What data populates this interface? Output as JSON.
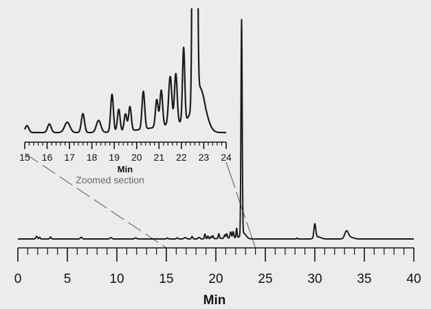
{
  "chart_data": [
    {
      "type": "line",
      "title": "",
      "xlabel": "Min",
      "ylabel": "",
      "xlim": [
        0,
        40
      ],
      "ylim": [
        0,
        100
      ],
      "xticks": [
        0,
        5,
        10,
        15,
        20,
        25,
        30,
        35,
        40
      ],
      "xtick_labels": [
        "0",
        "5",
        "10",
        "15",
        "20",
        "25",
        "30",
        "35",
        "40"
      ],
      "minor_tick_step": 1,
      "grid": false,
      "peaks": [
        [
          1.9,
          1.2,
          0.08
        ],
        [
          2.2,
          0.8,
          0.06
        ],
        [
          3.3,
          0.9,
          0.07
        ],
        [
          6.4,
          0.8,
          0.09
        ],
        [
          9.4,
          0.6,
          0.1
        ],
        [
          11.9,
          0.5,
          0.1
        ],
        [
          15.1,
          0.4,
          0.08
        ],
        [
          16.1,
          0.5,
          0.08
        ],
        [
          16.9,
          0.6,
          0.12
        ],
        [
          17.6,
          1.1,
          0.07
        ],
        [
          18.3,
          0.7,
          0.1
        ],
        [
          18.9,
          2.2,
          0.06
        ],
        [
          19.2,
          1.3,
          0.06
        ],
        [
          19.5,
          1.0,
          0.06
        ],
        [
          19.7,
          1.4,
          0.06
        ],
        [
          20.3,
          2.2,
          0.06
        ],
        [
          20.9,
          1.6,
          0.06
        ],
        [
          21.1,
          2.1,
          0.06
        ],
        [
          21.5,
          2.8,
          0.07
        ],
        [
          21.75,
          2.9,
          0.06
        ],
        [
          22.1,
          4.3,
          0.05
        ],
        [
          22.6,
          100,
          0.06
        ],
        [
          22.85,
          2.2,
          0.25
        ],
        [
          28.2,
          0.4,
          0.05
        ],
        [
          30.0,
          6.5,
          0.09
        ],
        [
          30.3,
          1.0,
          0.3
        ],
        [
          33.2,
          3.5,
          0.18
        ],
        [
          33.6,
          0.8,
          0.3
        ]
      ],
      "rising_background": {
        "from": 18,
        "to": 22.6,
        "height": 0.8
      }
    },
    {
      "type": "line",
      "title": "Zoomed section",
      "xlabel": "Min",
      "xlim": [
        15,
        24
      ],
      "ylim": [
        0,
        7
      ],
      "xticks": [
        15,
        16,
        17,
        18,
        19,
        20,
        21,
        22,
        23,
        24
      ],
      "xtick_labels": [
        "15",
        "16",
        "17",
        "18",
        "19",
        "20",
        "21",
        "22",
        "23",
        "24"
      ],
      "minor_tick_step": 0.2,
      "grid": false,
      "source": "same trace as main chromatogram"
    }
  ],
  "colors": {
    "background": "#ececec",
    "trace": "#1a1a1a",
    "zoom_lines": "#6e6e6e"
  }
}
